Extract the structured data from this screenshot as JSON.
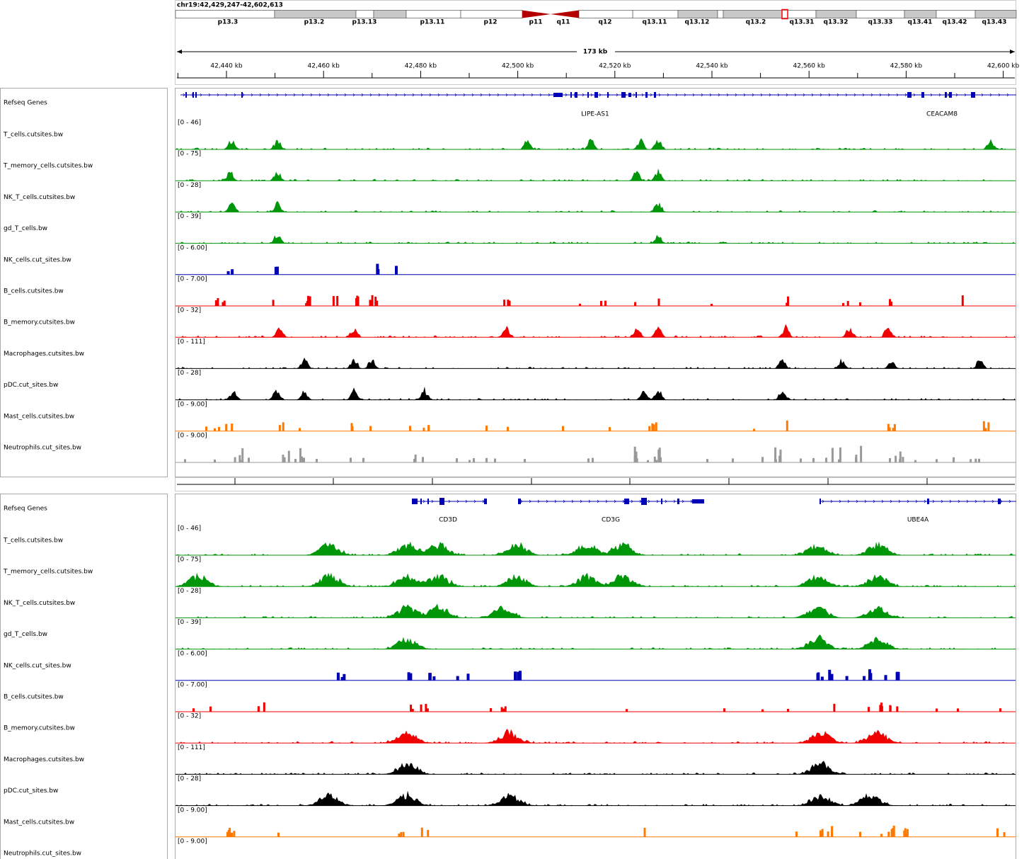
{
  "locus": "chr19:42,429,247-42,602,613",
  "cytobands": [
    "p13.3",
    "p13.2",
    "p13.13",
    "p13.11",
    "p12",
    "p11",
    "q11",
    "q12",
    "q13.11",
    "q13.12",
    "q13.2",
    "q13.31",
    "q13.32",
    "q13.33",
    "q13.41",
    "q13.42",
    "q13.43"
  ],
  "scale_label": "173 kb",
  "ruler_ticks": [
    "42,440 kb",
    "42,460 kb",
    "42,480 kb",
    "42,500 kb",
    "42,520 kb",
    "42,540 kb",
    "42,560 kb",
    "42,580 kb",
    "42,600 kb"
  ],
  "panels": [
    {
      "gene_track": "Refseq Genes",
      "genes": [
        "LIPE-AS1",
        "CEACAM8"
      ],
      "tracks": [
        {
          "name": "T_cells.cutsites.bw",
          "range": "[0 - 46]",
          "color": "#00960a"
        },
        {
          "name": "T_memory_cells.cutsites.bw",
          "range": "[0 - 75]",
          "color": "#00960a"
        },
        {
          "name": "NK_T_cells.cutsites.bw",
          "range": "[0 - 28]",
          "color": "#00960a"
        },
        {
          "name": "gd_T_cells.bw",
          "range": "[0 - 39]",
          "color": "#00960a"
        },
        {
          "name": "NK_cells.cut_sites.bw",
          "range": "[0 - 6.00]",
          "color": "#0000b4"
        },
        {
          "name": "B_cells.cutsites.bw",
          "range": "[0 - 7.00]",
          "color": "#f00000"
        },
        {
          "name": "B_memory.cutsites.bw",
          "range": "[0 - 32]",
          "color": "#f00000"
        },
        {
          "name": "Macrophages.cutsites.bw",
          "range": "[0 - 111]",
          "color": "#000000"
        },
        {
          "name": "pDC.cut_sites.bw",
          "range": "[0 - 28]",
          "color": "#000000"
        },
        {
          "name": "Mast_cells.cutsites.bw",
          "range": "[0 - 9.00]",
          "color": "#ff7800"
        },
        {
          "name": "Neutrophils.cut_sites.bw",
          "range": "[0 - 9.00]",
          "color": "#999999"
        }
      ]
    },
    {
      "gene_track": "Refseq Genes",
      "genes": [
        "CD3D",
        "CD3G",
        "UBE4A"
      ],
      "tracks": [
        {
          "name": "T_cells.cutsites.bw",
          "range": "[0 - 46]",
          "color": "#00960a"
        },
        {
          "name": "T_memory_cells.cutsites.bw",
          "range": "[0 - 75]",
          "color": "#00960a"
        },
        {
          "name": "NK_T_cells.cutsites.bw",
          "range": "[0 - 28]",
          "color": "#00960a"
        },
        {
          "name": "gd_T_cells.bw",
          "range": "[0 - 39]",
          "color": "#00960a"
        },
        {
          "name": "NK_cells.cut_sites.bw",
          "range": "[0 - 6.00]",
          "color": "#0000b4"
        },
        {
          "name": "B_cells.cutsites.bw",
          "range": "[0 - 7.00]",
          "color": "#f00000"
        },
        {
          "name": "B_memory.cutsites.bw",
          "range": "[0 - 32]",
          "color": "#f00000"
        },
        {
          "name": "Macrophages.cutsites.bw",
          "range": "[0 - 111]",
          "color": "#000000"
        },
        {
          "name": "pDC.cut_sites.bw",
          "range": "[0 - 28]",
          "color": "#000000"
        },
        {
          "name": "Mast_cells.cutsites.bw",
          "range": "[0 - 9.00]",
          "color": "#ff7800"
        },
        {
          "name": "Neutrophils.cut_sites.bw",
          "range": "[0 - 9.00]",
          "color": "#999999"
        }
      ]
    }
  ]
}
